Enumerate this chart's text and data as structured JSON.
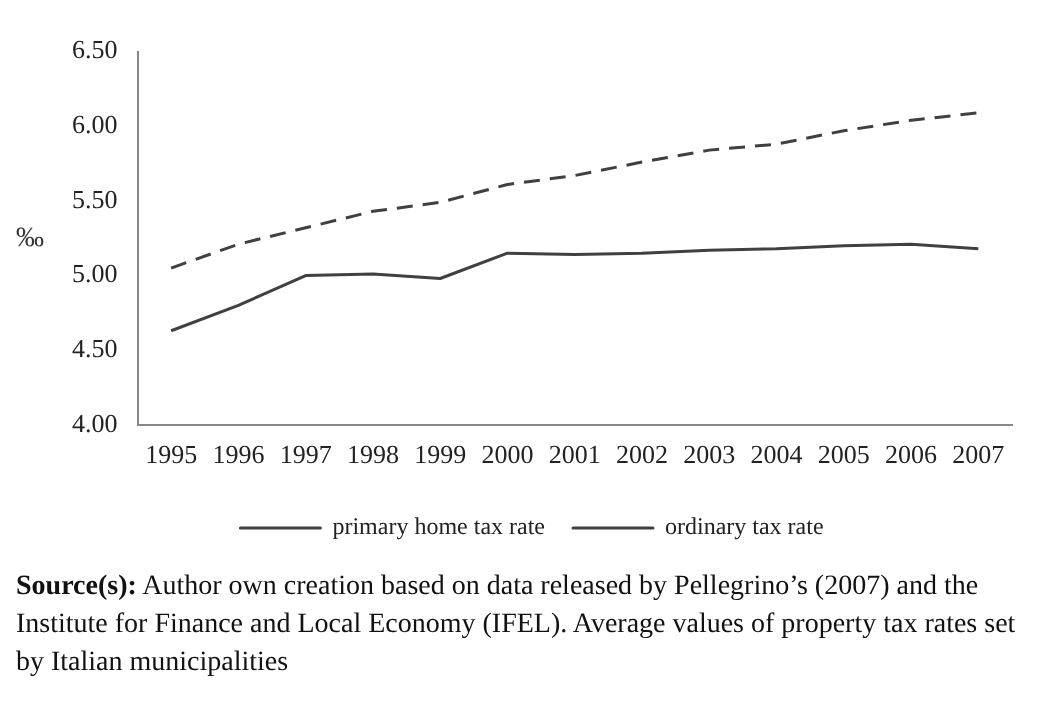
{
  "chart_data": {
    "type": "line",
    "ylabel": "‰",
    "categories": [
      "1995",
      "1996",
      "1997",
      "1998",
      "1999",
      "2000",
      "2001",
      "2002",
      "2003",
      "2004",
      "2005",
      "2006",
      "2007"
    ],
    "series": [
      {
        "name": "primary home tax rate",
        "color": "#404040",
        "line_style": "solid",
        "values": [
          4.63,
          4.8,
          5.0,
          5.01,
          4.98,
          5.15,
          5.14,
          5.15,
          5.17,
          5.18,
          5.2,
          5.21,
          5.18
        ]
      },
      {
        "name": "ordinary tax rate",
        "color": "#404040",
        "line_style": "dashed",
        "values": [
          5.05,
          5.21,
          5.32,
          5.43,
          5.49,
          5.61,
          5.67,
          5.76,
          5.84,
          5.88,
          5.97,
          6.04,
          6.09
        ]
      }
    ],
    "ylim": [
      4.0,
      6.5
    ],
    "yticks": [
      {
        "value": 4.0,
        "label": "4.00"
      },
      {
        "value": 4.5,
        "label": "4.50"
      },
      {
        "value": 5.0,
        "label": "5.00"
      },
      {
        "value": 5.5,
        "label": "5.50"
      },
      {
        "value": 6.0,
        "label": "6.00"
      },
      {
        "value": 6.5,
        "label": "6.50"
      }
    ],
    "grid": false,
    "legend": "bottom",
    "marker": "none",
    "annotations": [
      "Source(s): Author own creation based on data released by Pellegrino’s (2007) and the Institute for Finance and Local Economy (IFEL). Average values of property tax rates set by Italian municipalities"
    ]
  }
}
